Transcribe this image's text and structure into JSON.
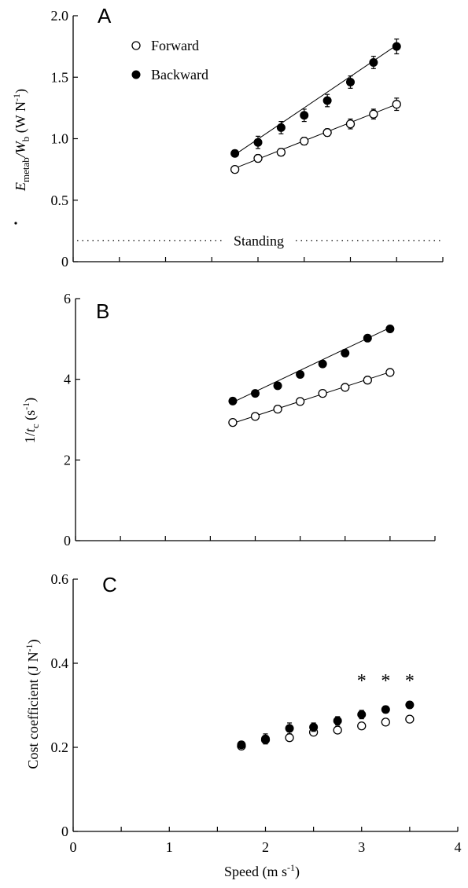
{
  "x_axis": {
    "label": "Speed (m s",
    "label_sup": "-1",
    "label_end": ")",
    "ticks": [
      0,
      1,
      2,
      3,
      4
    ],
    "tick_labels": [
      "0",
      "1",
      "2",
      "3",
      "4"
    ],
    "range": [
      0,
      4
    ]
  },
  "chart_data": [
    {
      "type": "scatter",
      "panel_letter": "A",
      "ylabel_parts": [
        "E",
        "metab",
        "/W",
        "b",
        " (W N",
        "-1",
        ")"
      ],
      "ylim": [
        0,
        2.0
      ],
      "yticks": [
        0,
        0.5,
        1.0,
        1.5,
        2.0
      ],
      "ytick_labels": [
        "0",
        "0.5",
        "1.0",
        "1.5",
        "2.0"
      ],
      "legend": {
        "placement": "top-left",
        "entries": [
          "Forward",
          "Backward"
        ]
      },
      "reference_line": {
        "y": 0.17,
        "label": "Standing",
        "style": "dotted"
      },
      "series": [
        {
          "name": "Forward",
          "marker": "open-circle",
          "x": [
            1.75,
            2.0,
            2.25,
            2.5,
            2.75,
            3.0,
            3.25,
            3.5
          ],
          "y": [
            0.75,
            0.84,
            0.89,
            0.98,
            1.05,
            1.12,
            1.2,
            1.28
          ],
          "err": [
            0.02,
            0.03,
            0.03,
            0.03,
            0.03,
            0.04,
            0.04,
            0.05
          ],
          "fit": {
            "x": [
              1.75,
              3.5
            ],
            "y": [
              0.76,
              1.28
            ]
          }
        },
        {
          "name": "Backward",
          "marker": "filled-circle",
          "x": [
            1.75,
            2.0,
            2.25,
            2.5,
            2.75,
            3.0,
            3.25,
            3.5
          ],
          "y": [
            0.88,
            0.97,
            1.09,
            1.19,
            1.31,
            1.46,
            1.62,
            1.75
          ],
          "err": [
            0.02,
            0.05,
            0.05,
            0.05,
            0.05,
            0.05,
            0.05,
            0.06
          ],
          "fit": {
            "x": [
              1.75,
              3.5
            ],
            "y": [
              0.87,
              1.76
            ]
          }
        }
      ]
    },
    {
      "type": "scatter",
      "panel_letter": "B",
      "ylabel_parts": [
        "1/",
        "t",
        "c",
        " (s",
        "-1",
        ")"
      ],
      "ylim": [
        0,
        6
      ],
      "yticks": [
        0,
        2,
        4,
        6
      ],
      "ytick_labels": [
        "0",
        "2",
        "4",
        "6"
      ],
      "series": [
        {
          "name": "Forward",
          "marker": "open-circle",
          "x": [
            1.75,
            2.0,
            2.25,
            2.5,
            2.75,
            3.0,
            3.25,
            3.5
          ],
          "y": [
            2.93,
            3.08,
            3.26,
            3.45,
            3.65,
            3.8,
            3.98,
            4.17
          ],
          "err": [
            0.02,
            0.02,
            0.02,
            0.02,
            0.02,
            0.02,
            0.02,
            0.03
          ],
          "fit": {
            "x": [
              1.75,
              3.5
            ],
            "y": [
              2.91,
              4.18
            ]
          }
        },
        {
          "name": "Backward",
          "marker": "filled-circle",
          "x": [
            1.75,
            2.0,
            2.25,
            2.5,
            2.75,
            3.0,
            3.25,
            3.5
          ],
          "y": [
            3.46,
            3.65,
            3.84,
            4.12,
            4.38,
            4.65,
            5.02,
            5.25
          ],
          "err": [
            0.02,
            0.02,
            0.02,
            0.02,
            0.02,
            0.02,
            0.03,
            0.03
          ],
          "fit": {
            "x": [
              1.75,
              3.5
            ],
            "y": [
              3.43,
              5.28
            ]
          }
        }
      ]
    },
    {
      "type": "scatter",
      "panel_letter": "C",
      "ylabel": "Cost coefficient (J N",
      "ylabel_sup": "-1",
      "ylabel_end": ")",
      "ylim": [
        0,
        0.6
      ],
      "yticks": [
        0,
        0.2,
        0.4,
        0.6
      ],
      "ytick_labels": [
        "0",
        "0.2",
        "0.4",
        "0.6"
      ],
      "significance_marks": {
        "symbol": "*",
        "x": [
          3.0,
          3.25,
          3.5
        ]
      },
      "series": [
        {
          "name": "Forward",
          "marker": "open-circle",
          "x": [
            1.75,
            2.0,
            2.25,
            2.5,
            2.75,
            3.0,
            3.25,
            3.5
          ],
          "y": [
            0.203,
            0.218,
            0.223,
            0.236,
            0.241,
            0.251,
            0.26,
            0.267
          ],
          "err": [
            0.004,
            0.005,
            0.005,
            0.005,
            0.005,
            0.005,
            0.005,
            0.005
          ]
        },
        {
          "name": "Backward",
          "marker": "filled-circle",
          "x": [
            1.75,
            2.0,
            2.25,
            2.5,
            2.75,
            3.0,
            3.25,
            3.5
          ],
          "y": [
            0.206,
            0.22,
            0.245,
            0.248,
            0.263,
            0.278,
            0.29,
            0.301
          ],
          "err": [
            0.006,
            0.012,
            0.013,
            0.01,
            0.01,
            0.01,
            0.008,
            0.008
          ]
        }
      ]
    }
  ]
}
